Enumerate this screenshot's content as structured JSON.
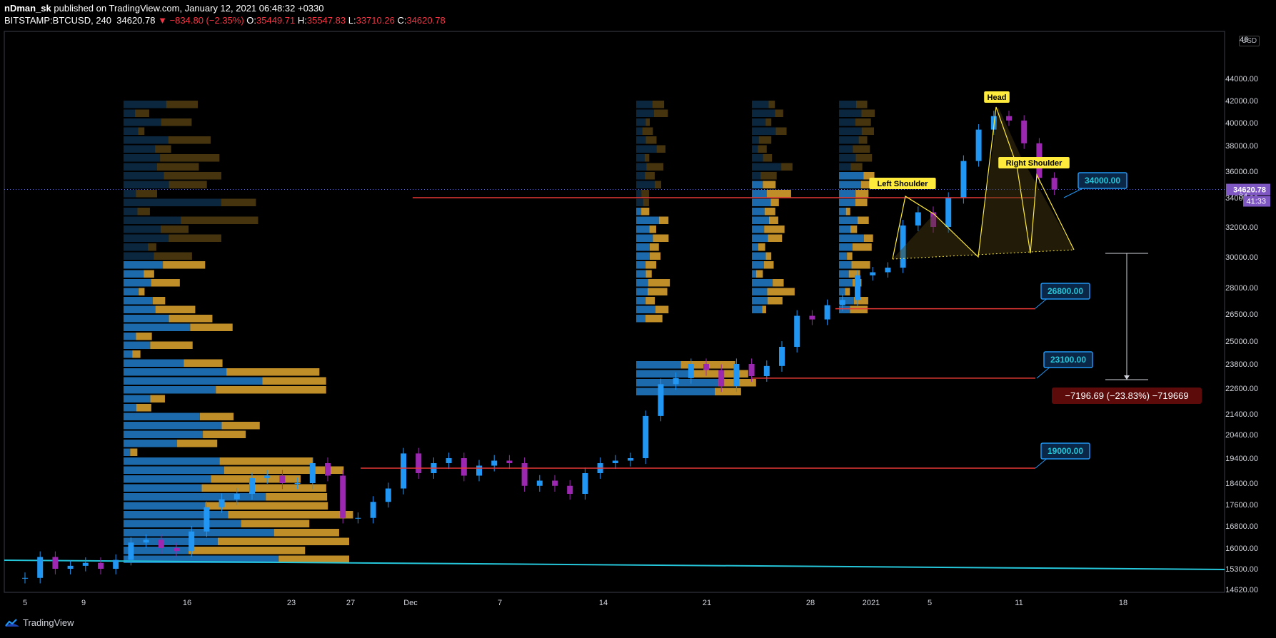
{
  "header": {
    "publisher": "nDman_sk",
    "published_text": "published on TradingView.com, January 12, 2021 06:48:32 +0330",
    "symbol": "BITSTAMP:BTCUSD, 240",
    "last": "34620.78",
    "change": "▼ −834.80 (−2.35%)",
    "o_label": "O:",
    "o": "35449.71",
    "h_label": "H:",
    "h": "35547.83",
    "l_label": "L:",
    "l": "33710.26",
    "c_label": "C:",
    "c": "34620.78"
  },
  "footer": {
    "brand": "TradingView"
  },
  "currency": "USD",
  "colors": {
    "bg": "#000000",
    "candle_up": "#2196f3",
    "candle_down": "#9c27b0",
    "vp_up": "#1e6fb5",
    "vp_down": "#c9962a",
    "level_line": "#e53935",
    "trend_line": "#26c6da",
    "pattern": "#ffeb3b",
    "label_bg": "#0b2747",
    "label_border": "#2196f3",
    "label_text": "#26c6da",
    "price_tag": "#7e57c2"
  },
  "chart_data": {
    "type": "candlestick",
    "title": "",
    "ylim": [
      14620,
      46000
    ],
    "y_ticks": [
      "44000.00",
      "42000.00",
      "40000.00",
      "38000.00",
      "36000.00",
      "34000.00",
      "32000.00",
      "30000.00",
      "28000.00",
      "26500.00",
      "25000.00",
      "23800.00",
      "22600.00",
      "21400.00",
      "20400.00",
      "19400.00",
      "18400.00",
      "17600.00",
      "16800.00",
      "16000.00",
      "15300.00",
      "14620.00"
    ],
    "x_ticks": [
      "5",
      "9",
      "16",
      "23",
      "27",
      "Dec",
      "7",
      "14",
      "21",
      "28",
      "2021",
      "5",
      "11",
      "18"
    ],
    "series": [
      {
        "name": "",
        "points": [
          [
            "Nov 5",
            15000
          ],
          [
            "Nov 6",
            15700
          ],
          [
            "Nov 7",
            15300
          ],
          [
            "Nov 8",
            15400
          ],
          [
            "Nov 9",
            15500
          ],
          [
            "Nov 10",
            15300
          ],
          [
            "Nov 11",
            15600
          ],
          [
            "Nov 12",
            16200
          ],
          [
            "Nov 13",
            16300
          ],
          [
            "Nov 14",
            16000
          ],
          [
            "Nov 15",
            15900
          ],
          [
            "Nov 16",
            16600
          ],
          [
            "Nov 17",
            17500
          ],
          [
            "Nov 18",
            17800
          ],
          [
            "Nov 19",
            18000
          ],
          [
            "Nov 20",
            18600
          ],
          [
            "Nov 21",
            18700
          ],
          [
            "Nov 22",
            18400
          ],
          [
            "Nov 23",
            18400
          ],
          [
            "Nov 24",
            19200
          ],
          [
            "Nov 25",
            18700
          ],
          [
            "Nov 26",
            17100
          ],
          [
            "Nov 27",
            17100
          ],
          [
            "Nov 28",
            17700
          ],
          [
            "Nov 29",
            18200
          ],
          [
            "Nov 30",
            19600
          ],
          [
            "Dec 1",
            18800
          ],
          [
            "Dec 2",
            19200
          ],
          [
            "Dec 3",
            19400
          ],
          [
            "Dec 4",
            18700
          ],
          [
            "Dec 5",
            19100
          ],
          [
            "Dec 6",
            19300
          ],
          [
            "Dec 7",
            19200
          ],
          [
            "Dec 8",
            18300
          ],
          [
            "Dec 9",
            18500
          ],
          [
            "Dec 10",
            18300
          ],
          [
            "Dec 11",
            18000
          ],
          [
            "Dec 12",
            18800
          ],
          [
            "Dec 13",
            19200
          ],
          [
            "Dec 14",
            19300
          ],
          [
            "Dec 15",
            19400
          ],
          [
            "Dec 16",
            21300
          ],
          [
            "Dec 17",
            22800
          ],
          [
            "Dec 18",
            23100
          ],
          [
            "Dec 19",
            23800
          ],
          [
            "Dec 20",
            23500
          ],
          [
            "Dec 21",
            22700
          ],
          [
            "Dec 22",
            23800
          ],
          [
            "Dec 23",
            23200
          ],
          [
            "Dec 24",
            23700
          ],
          [
            "Dec 25",
            24700
          ],
          [
            "Dec 26",
            26400
          ],
          [
            "Dec 27",
            26200
          ],
          [
            "Dec 28",
            27000
          ],
          [
            "Dec 29",
            27300
          ],
          [
            "Dec 30",
            28800
          ],
          [
            "Dec 31",
            29000
          ],
          [
            "Jan 1",
            29300
          ],
          [
            "Jan 2",
            32100
          ],
          [
            "Jan 3",
            33000
          ],
          [
            "Jan 4",
            32000
          ],
          [
            "Jan 5",
            34000
          ],
          [
            "Jan 6",
            36800
          ],
          [
            "Jan 7",
            39400
          ],
          [
            "Jan 8",
            40600
          ],
          [
            "Jan 9",
            40200
          ],
          [
            "Jan 10",
            38200
          ],
          [
            "Jan 11",
            35500
          ],
          [
            "Jan 12",
            34620
          ]
        ]
      }
    ],
    "levels": [
      {
        "value": 34000,
        "label": "34000.00"
      },
      {
        "value": 26800,
        "label": "26800.00"
      },
      {
        "value": 23100,
        "label": "23100.00"
      },
      {
        "value": 19000,
        "label": "19000.00"
      }
    ],
    "pattern_labels": [
      "Left Shoulder",
      "Head",
      "Right Shoulder"
    ],
    "measure_label": "−7196.69 (−23.83%) −719669",
    "last_price_tag": "34620.78",
    "countdown": "41:33",
    "partial_tick": "34",
    "top_partial_tick": "46"
  }
}
